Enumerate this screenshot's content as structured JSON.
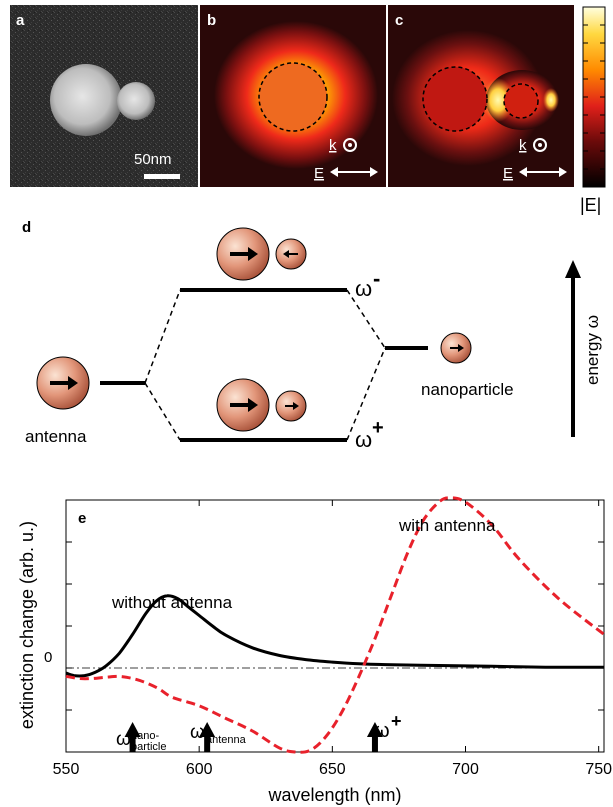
{
  "panels": {
    "a": {
      "letter": "a",
      "scalebar_label": "50nm"
    },
    "b": {
      "letter": "b",
      "k_label": "k",
      "e_label": "E"
    },
    "c": {
      "letter": "c",
      "k_label": "k",
      "e_label": "E"
    },
    "colorbar": {
      "label": "|E|"
    }
  },
  "diagram": {
    "letter": "d",
    "antenna_label": "antenna",
    "nanoparticle_label": "nanoparticle",
    "omega_minus": "ω",
    "omega_minus_sup": "-",
    "omega_plus": "ω",
    "omega_plus_sup": "+",
    "energy_label": "energy ω"
  },
  "chart_data": {
    "type": "line",
    "panel_letter": "e",
    "xlabel": "wavelength (nm)",
    "ylabel": "extinction change (arb. u.)",
    "xlim": [
      550,
      752
    ],
    "ylim": [
      -2,
      4
    ],
    "xticks": [
      550,
      600,
      650,
      700,
      750
    ],
    "zero_label": "0",
    "series": [
      {
        "name": "without antenna",
        "color": "#000000",
        "style": "solid",
        "x": [
          550,
          553,
          557,
          561,
          565,
          570,
          575,
          580,
          584,
          588,
          592,
          596,
          600,
          605,
          610,
          620,
          630,
          640,
          650,
          660,
          670,
          690,
          710,
          730,
          752
        ],
        "y": [
          -0.12,
          -0.18,
          -0.18,
          -0.1,
          0.05,
          0.35,
          0.8,
          1.3,
          1.6,
          1.72,
          1.65,
          1.45,
          1.25,
          1.0,
          0.78,
          0.48,
          0.3,
          0.2,
          0.14,
          0.1,
          0.08,
          0.06,
          0.04,
          0.02,
          0.02
        ]
      },
      {
        "name": "with antenna",
        "color": "#e8212b",
        "style": "dashed",
        "x": [
          550,
          555,
          560,
          565,
          570,
          575,
          580,
          585,
          590,
          600,
          610,
          620,
          630,
          636,
          642,
          648,
          654,
          660,
          666,
          672,
          678,
          684,
          690,
          694,
          700,
          710,
          720,
          735,
          752
        ],
        "y": [
          -0.2,
          -0.25,
          -0.25,
          -0.22,
          -0.2,
          -0.25,
          -0.35,
          -0.5,
          -0.7,
          -0.9,
          -1.2,
          -1.5,
          -1.9,
          -2.0,
          -1.95,
          -1.6,
          -1.0,
          -0.2,
          0.7,
          1.7,
          2.7,
          3.5,
          3.95,
          4.05,
          3.95,
          3.4,
          2.6,
          1.65,
          0.8
        ]
      }
    ],
    "marker_labels": {
      "nano_base": "ω",
      "nano_sub1": "nano-",
      "nano_sub2": "particle",
      "antenna_base": "ω",
      "antenna_sub": "antenna",
      "plus_base": "ω",
      "plus_sup": "+"
    },
    "markers_x": [
      575,
      603,
      666
    ]
  }
}
